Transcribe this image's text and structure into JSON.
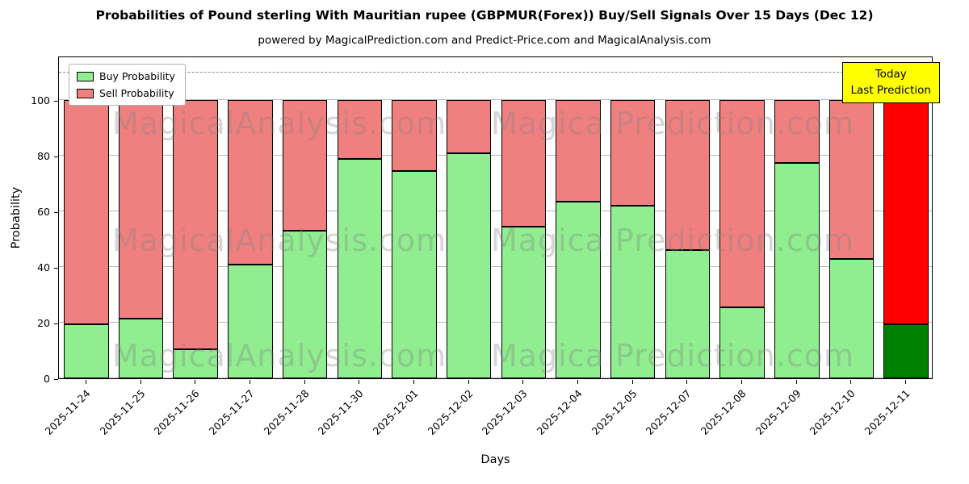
{
  "title": "Probabilities of Pound sterling With Mauritian rupee (GBPMUR(Forex)) Buy/Sell Signals Over 15 Days (Dec 12)",
  "subtitle": "powered by MagicalPrediction.com and Predict-Price.com and MagicalAnalysis.com",
  "legend": {
    "buy": "Buy Probability",
    "sell": "Sell Probability"
  },
  "today_label": {
    "line1": "Today",
    "line2": "Last Prediction"
  },
  "watermarks": {
    "left_text": "MagicalAnalysis.com",
    "right_text": "Magica Prediction.com"
  },
  "chart_data": {
    "type": "bar",
    "stacked": true,
    "title": "Probabilities of Pound sterling With Mauritian rupee (GBPMUR(Forex)) Buy/Sell Signals Over 15 Days (Dec 12)",
    "xlabel": "Days",
    "ylabel": "Probability",
    "categories": [
      "2025-11-24",
      "2025-11-25",
      "2025-11-26",
      "2025-11-27",
      "2025-11-28",
      "2025-11-30",
      "2025-12-01",
      "2025-12-02",
      "2025-12-03",
      "2025-12-04",
      "2025-12-05",
      "2025-12-07",
      "2025-12-08",
      "2025-12-09",
      "2025-12-10",
      "2025-12-11"
    ],
    "series": [
      {
        "name": "Buy Probability",
        "color": "#90ee90",
        "values": [
          19.5,
          21.5,
          10.5,
          41,
          53,
          79,
          74.5,
          81,
          54.5,
          63.5,
          62,
          46,
          25.5,
          77.5,
          43,
          19.5
        ]
      },
      {
        "name": "Sell Probability",
        "color": "#f08080",
        "values": [
          80.5,
          78.5,
          89.5,
          59,
          47,
          21,
          25.5,
          19,
          45.5,
          36.5,
          38,
          54,
          74.5,
          22.5,
          57,
          80.5
        ]
      }
    ],
    "today_colors": {
      "buy": "#008000",
      "sell": "#ff0000"
    },
    "yticks": [
      0,
      20,
      40,
      60,
      80,
      100
    ],
    "ylim": [
      0,
      116
    ],
    "dashed_line_y": 110,
    "grid": true,
    "legend_position": "upper left"
  }
}
